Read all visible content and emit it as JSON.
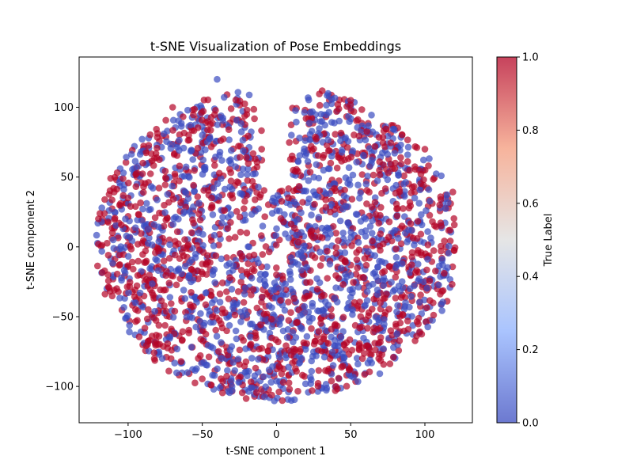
{
  "chart_data": {
    "type": "scatter",
    "title": "t-SNE Visualization of Pose Embeddings",
    "xlabel": "t-SNE component 1",
    "ylabel": "t-SNE component 2",
    "xlim": [
      -133,
      132
    ],
    "ylim": [
      -126,
      136
    ],
    "x_ticks": [
      -100,
      -50,
      0,
      50,
      100
    ],
    "y_ticks": [
      -100,
      -50,
      0,
      50,
      100
    ],
    "x_tick_labels": [
      "−100",
      "−50",
      "0",
      "50",
      "100"
    ],
    "y_tick_labels": [
      "−100",
      "−50",
      "0",
      "50",
      "100"
    ],
    "grid": false,
    "colormap": "coolwarm",
    "color_low": "#3b4cc0",
    "color_mid": "#dddddd",
    "color_high": "#b40426",
    "marker_alpha": 0.7,
    "colorbar": {
      "label": "True Label",
      "range": [
        0.0,
        1.0
      ],
      "ticks": [
        0.0,
        0.2,
        0.4,
        0.6,
        0.8,
        1.0
      ],
      "tick_labels": [
        "0.0",
        "0.2",
        "0.4",
        "0.6",
        "0.8",
        "1.0"
      ]
    },
    "label_values": [
      0,
      1
    ],
    "approx_point_count": 2600,
    "point_sample": [
      {
        "x": -120,
        "y": 20,
        "label": 1
      },
      {
        "x": -110,
        "y": 5,
        "label": 0
      },
      {
        "x": -100,
        "y": 35,
        "label": 1
      },
      {
        "x": -95,
        "y": -40,
        "label": 0
      },
      {
        "x": -90,
        "y": 60,
        "label": 1
      },
      {
        "x": -80,
        "y": -70,
        "label": 1
      },
      {
        "x": -70,
        "y": 100,
        "label": 1
      },
      {
        "x": -60,
        "y": -90,
        "label": 0
      },
      {
        "x": -50,
        "y": 80,
        "label": 0
      },
      {
        "x": -40,
        "y": 120,
        "label": 0
      },
      {
        "x": -30,
        "y": -100,
        "label": 0
      },
      {
        "x": -20,
        "y": 10,
        "label": 1
      },
      {
        "x": -10,
        "y": 70,
        "label": 1
      },
      {
        "x": 0,
        "y": -20,
        "label": 1
      },
      {
        "x": 10,
        "y": -110,
        "label": 0
      },
      {
        "x": 20,
        "y": 40,
        "label": 0
      },
      {
        "x": 30,
        "y": 95,
        "label": 0
      },
      {
        "x": 40,
        "y": -100,
        "label": 1
      },
      {
        "x": 50,
        "y": 105,
        "label": 1
      },
      {
        "x": 60,
        "y": 20,
        "label": 0
      },
      {
        "x": 70,
        "y": -40,
        "label": 1
      },
      {
        "x": 80,
        "y": 60,
        "label": 1
      },
      {
        "x": 90,
        "y": -30,
        "label": 0
      },
      {
        "x": 100,
        "y": 70,
        "label": 1
      },
      {
        "x": 110,
        "y": 30,
        "label": 1
      },
      {
        "x": 117,
        "y": 12,
        "label": 1
      }
    ]
  }
}
